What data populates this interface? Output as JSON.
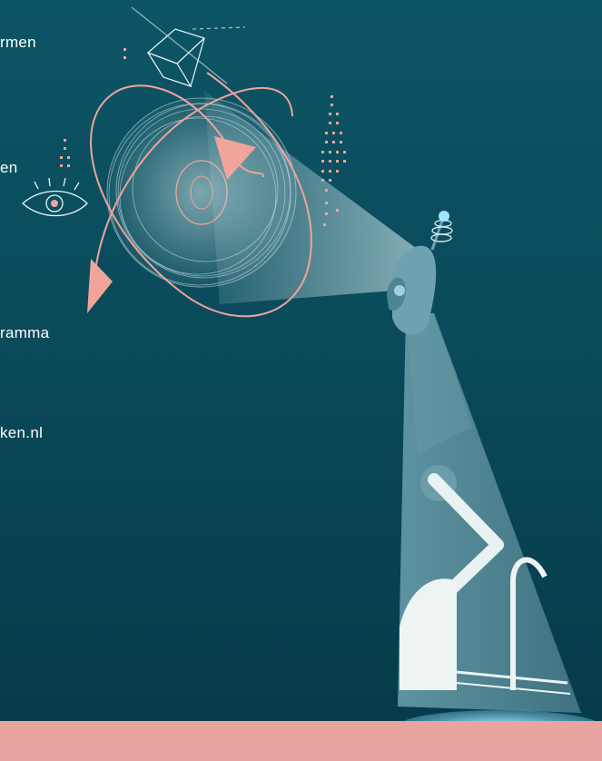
{
  "menu_fragments": [
    "rmen",
    "en",
    "ramma",
    "ken.nl"
  ],
  "colors": {
    "background_top": "#0c5566",
    "background_bottom": "#073a48",
    "accent_pink": "#f0a49c",
    "robot_body": "#4a7f8c",
    "bottom_band": "#e8a5a0"
  },
  "illustration": {
    "subject": "robot-with-projector-beam",
    "icons": [
      "eye-icon",
      "cube-icon",
      "orbit-arrows",
      "target-rings"
    ]
  }
}
